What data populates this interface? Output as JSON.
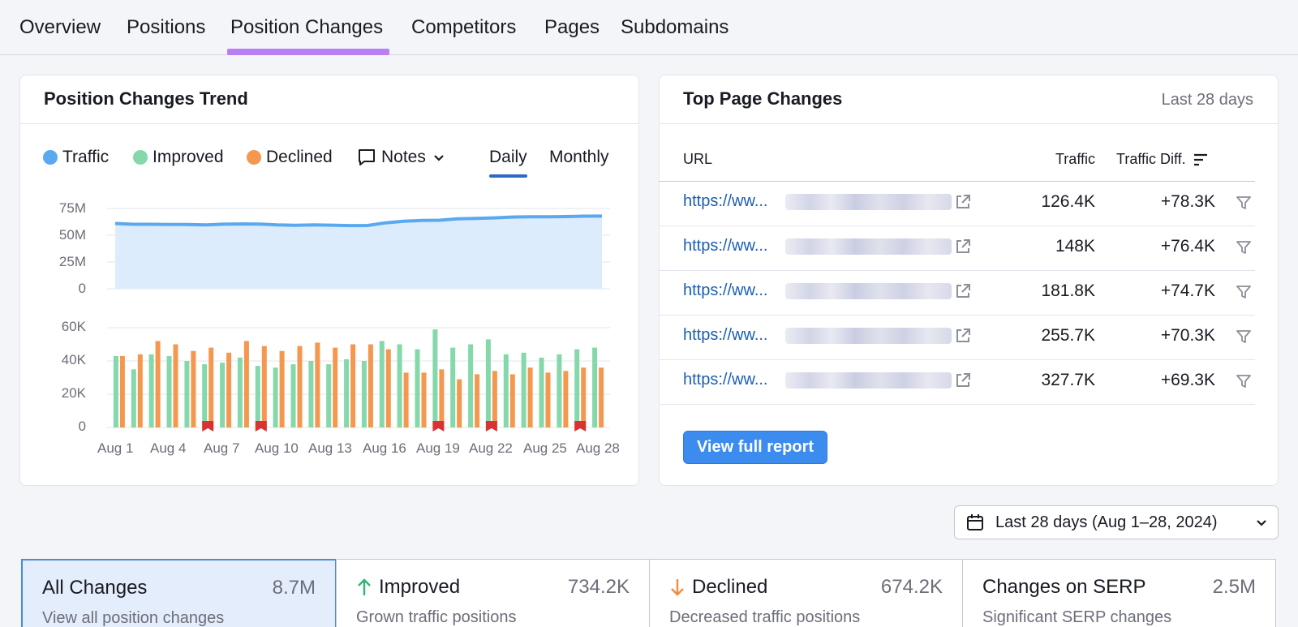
{
  "tabs": [
    "Overview",
    "Positions",
    "Position Changes",
    "Competitors",
    "Pages",
    "Subdomains"
  ],
  "trend": {
    "title": "Position Changes Trend",
    "legend": {
      "traffic": "Traffic",
      "improved": "Improved",
      "declined": "Declined",
      "notes": "Notes"
    },
    "switch": {
      "daily": "Daily",
      "monthly": "Monthly"
    },
    "colors": {
      "traffic_line": "#5aa9f0",
      "traffic_fill": "#dcecfd",
      "improved": "#84d8aa",
      "declined": "#f4974f",
      "note_flag": "#d93232"
    }
  },
  "chart_data": [
    {
      "type": "area",
      "series_name": "Traffic",
      "y_ticks": [
        "75M",
        "50M",
        "25M",
        "0"
      ],
      "ylim": [
        0,
        75000000
      ],
      "x": [
        1,
        2,
        3,
        4,
        5,
        6,
        7,
        8,
        9,
        10,
        11,
        12,
        13,
        14,
        15,
        16,
        17,
        18,
        19,
        20,
        21,
        22,
        23,
        24,
        25,
        26,
        27,
        28
      ],
      "values": [
        61000000,
        60200000,
        60200000,
        60000000,
        60000000,
        59600000,
        60300000,
        60500000,
        60400000,
        59600000,
        59300000,
        59600000,
        59400000,
        59000000,
        59100000,
        61600000,
        63000000,
        63800000,
        64000000,
        65300000,
        65700000,
        66200000,
        67000000,
        67200000,
        67200000,
        67400000,
        67800000,
        67900000
      ]
    },
    {
      "type": "bar",
      "series": [
        {
          "name": "Improved",
          "values": [
            43000,
            35000,
            44000,
            43000,
            40000,
            38000,
            39000,
            42000,
            37000,
            36000,
            38000,
            40000,
            38000,
            41000,
            40000,
            52000,
            50000,
            47000,
            59000,
            48000,
            50000,
            53000,
            44000,
            45000,
            42000,
            44000,
            47000,
            48000
          ]
        },
        {
          "name": "Declined",
          "values": [
            43000,
            44000,
            52000,
            50000,
            46000,
            48000,
            45000,
            52000,
            49000,
            46000,
            49000,
            51000,
            48000,
            50000,
            50000,
            47000,
            33000,
            33000,
            35000,
            29000,
            32000,
            34000,
            32000,
            36000,
            33000,
            34000,
            36000,
            36000
          ]
        }
      ],
      "y_ticks": [
        "60K",
        "40K",
        "20K",
        "0"
      ],
      "ylim": [
        0,
        60000
      ],
      "x_tick_labels": [
        "Aug 1",
        "Aug 4",
        "Aug 7",
        "Aug 10",
        "Aug 13",
        "Aug 16",
        "Aug 19",
        "Aug 22",
        "Aug 25",
        "Aug 28"
      ],
      "note_days": [
        6,
        9,
        19,
        22,
        27
      ]
    }
  ],
  "top_pages": {
    "title": "Top Page Changes",
    "period": "Last 28 days",
    "headers": {
      "url": "URL",
      "traffic": "Traffic",
      "diff": "Traffic Diff."
    },
    "rows": [
      {
        "url": "https://ww...",
        "traffic": "126.4K",
        "diff": "+78.3K"
      },
      {
        "url": "https://ww...",
        "traffic": "148K",
        "diff": "+76.4K"
      },
      {
        "url": "https://ww...",
        "traffic": "181.8K",
        "diff": "+74.7K"
      },
      {
        "url": "https://ww...",
        "traffic": "255.7K",
        "diff": "+70.3K"
      },
      {
        "url": "https://ww...",
        "traffic": "327.7K",
        "diff": "+69.3K"
      }
    ],
    "button": "View full report"
  },
  "date_range": "Last 28 days (Aug 1–28, 2024)",
  "stats": [
    {
      "title": "All Changes",
      "value": "8.7M",
      "sub": "View all position changes"
    },
    {
      "title": "Improved",
      "value": "734.2K",
      "sub": "Grown traffic positions"
    },
    {
      "title": "Declined",
      "value": "674.2K",
      "sub": "Decreased traffic positions"
    },
    {
      "title": "Changes on SERP",
      "value": "2.5M",
      "sub": "Significant SERP changes"
    }
  ]
}
